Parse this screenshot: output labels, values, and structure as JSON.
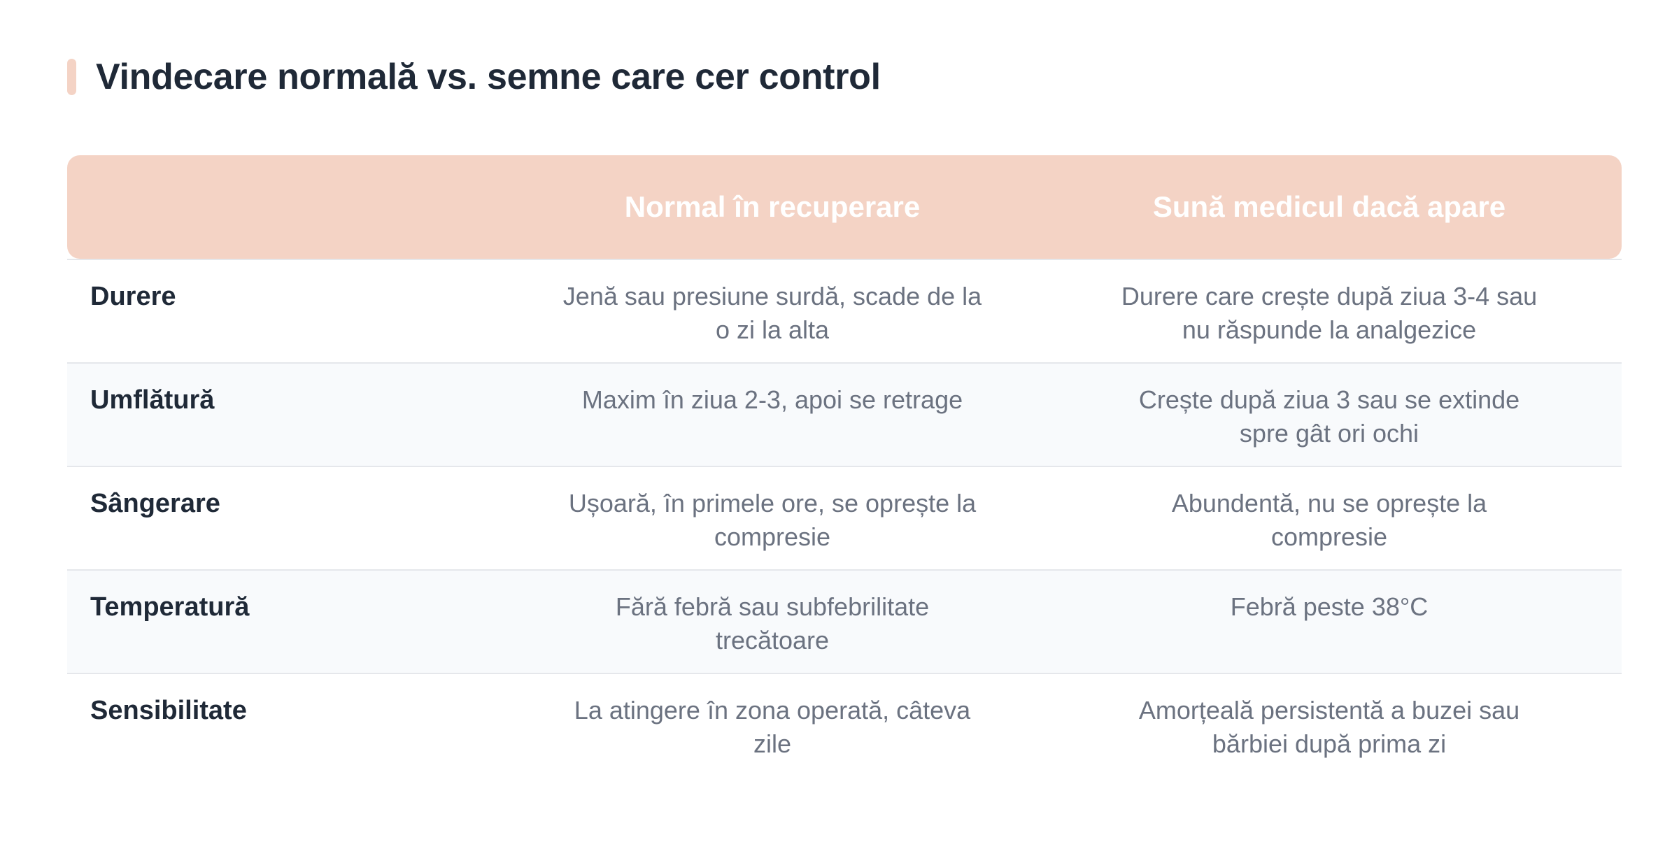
{
  "title": "Vindecare normală vs. semne care cer control",
  "table": {
    "headers": [
      "",
      "Normal în recuperare",
      "Sună medicul dacă apare"
    ],
    "rows": [
      {
        "label": "Durere",
        "normal": "Jenă sau presiune surdă, scade de la o zi la alta",
        "alert": "Durere care crește după ziua 3-4 sau nu răspunde la analgezice"
      },
      {
        "label": "Umflătură",
        "normal": "Maxim în ziua 2-3, apoi se retrage",
        "alert": "Crește după ziua 3 sau se extinde spre gât ori ochi"
      },
      {
        "label": "Sângerare",
        "normal": "Ușoară, în primele ore, se oprește la compresie",
        "alert": "Abundentă, nu se oprește la compresie"
      },
      {
        "label": "Temperatură",
        "normal": "Fără febră sau subfebrilitate trecătoare",
        "alert": "Febră peste 38°C"
      },
      {
        "label": "Sensibilitate",
        "normal": "La atingere în zona operată, câteva zile",
        "alert": "Amorțeală persistentă a buzei sau bărbiei după prima zi"
      }
    ]
  },
  "colors": {
    "accent": "#f4d3c5",
    "title": "#1f2937",
    "cell_text": "#6b7280",
    "alt_row": "#f8fafc",
    "divider": "#e5e7eb"
  }
}
